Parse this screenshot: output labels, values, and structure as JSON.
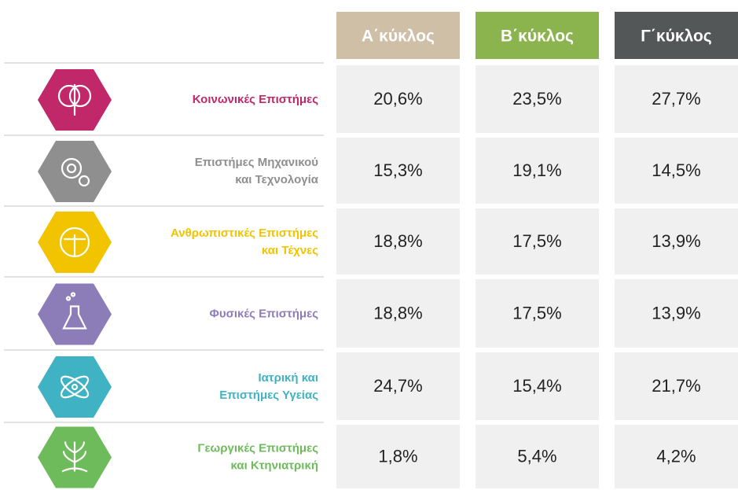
{
  "table": {
    "columns": [
      {
        "label": "Α΄κύκλος",
        "color": "#cfbfa6"
      },
      {
        "label": "Β΄κύκλος",
        "color": "#8bb44f"
      },
      {
        "label": "Γ΄κύκλος",
        "color": "#535758"
      }
    ],
    "rows": [
      {
        "label": [
          "Κοινωνικές Επιστήμες"
        ],
        "color": "#c0286a",
        "values": [
          "20,6%",
          "23,5%",
          "27,7%"
        ]
      },
      {
        "label": [
          "Επιστήμες Μηχανικού",
          "και Τεχνολογία"
        ],
        "color": "#8f8f8f",
        "values": [
          "15,3%",
          "19,1%",
          "14,5%"
        ]
      },
      {
        "label": [
          "Ανθρωπιστικές Επιστήμες",
          "και Τέχνες"
        ],
        "color": "#f2c400",
        "values": [
          "18,8%",
          "17,5%",
          "13,9%"
        ]
      },
      {
        "label": [
          "Φυσικές Επιστήμες"
        ],
        "color": "#8c7db8",
        "values": [
          "18,8%",
          "17,5%",
          "13,9%"
        ]
      },
      {
        "label": [
          "Ιατρική και",
          "Επιστήμες Υγείας"
        ],
        "color": "#3fb3c4",
        "values": [
          "24,7%",
          "15,4%",
          "21,7%"
        ]
      },
      {
        "label": [
          "Γεωργικές Επιστήμες",
          "και Κτηνιατρική"
        ],
        "color": "#6dbb5a",
        "values": [
          "1,8%",
          "5,4%",
          "4,2%"
        ]
      }
    ]
  }
}
